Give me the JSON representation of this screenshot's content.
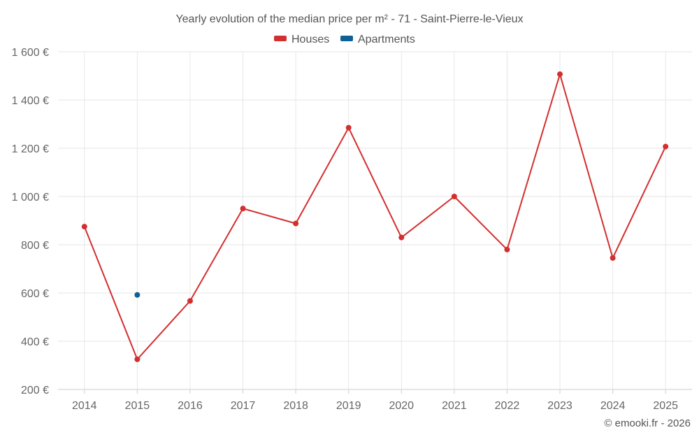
{
  "chart_data": {
    "type": "line",
    "title": "Yearly evolution of the median price per m² - 71 - Saint-Pierre-le-Vieux",
    "categories": [
      "2014",
      "2015",
      "2016",
      "2017",
      "2018",
      "2019",
      "2020",
      "2021",
      "2022",
      "2023",
      "2024",
      "2025"
    ],
    "ylim": [
      200,
      1600
    ],
    "yticks": [
      200,
      400,
      600,
      800,
      1000,
      1200,
      1400,
      1600
    ],
    "ytick_labels": [
      "200 €",
      "400 €",
      "600 €",
      "800 €",
      "1 000 €",
      "1 200 €",
      "1 400 €",
      "1 600 €"
    ],
    "xlabel": "",
    "ylabel": "",
    "legend_position": "top-center",
    "series": [
      {
        "name": "Houses",
        "color": "#d32f2f",
        "values": [
          875,
          325,
          567,
          950,
          888,
          1285,
          830,
          1000,
          780,
          1507,
          745,
          1207
        ]
      },
      {
        "name": "Apartments",
        "color": "#0d6196",
        "values": [
          null,
          592,
          null,
          null,
          null,
          null,
          null,
          null,
          null,
          null,
          null,
          null
        ]
      }
    ],
    "credit": "© emooki.fr - 2026"
  }
}
